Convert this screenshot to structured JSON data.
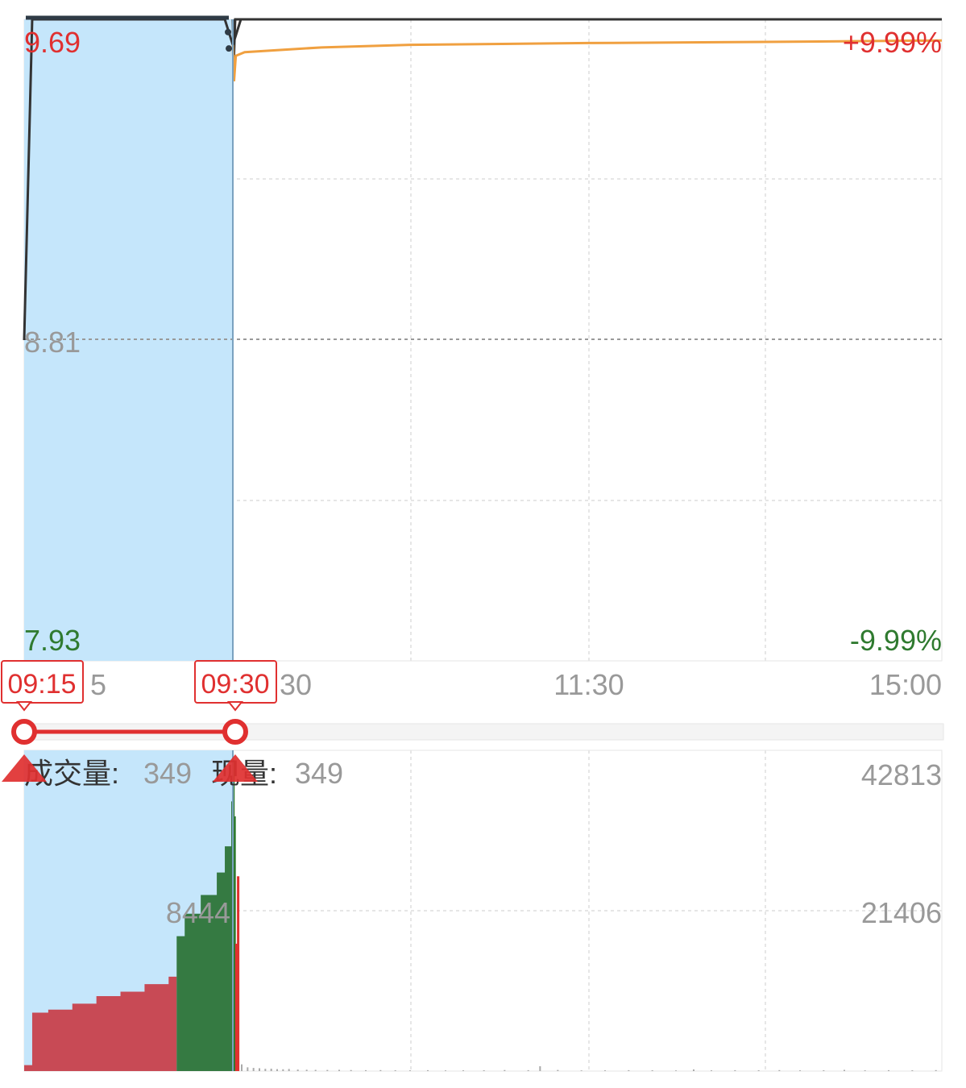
{
  "colors": {
    "up": "#e03030",
    "down": "#2f7a2f",
    "up_bar": "#c84a55",
    "down_bar": "#357a42",
    "price_line": "#333333",
    "avg_line": "#f0a040",
    "auction_fill": "#c5e6fb",
    "gray_text": "#999999",
    "grid": "#e6e6e6",
    "mid_line": "#999999"
  },
  "chart_data": {
    "type": "intraday",
    "price_axis": {
      "top": "9.69",
      "mid": "8.81",
      "bottom": "7.93",
      "top_pct": "+9.99%",
      "bottom_pct": "-9.99%",
      "range": [
        7.93,
        9.69
      ]
    },
    "time_axis": {
      "labels": [
        "09:15",
        "09:30",
        "11:30",
        "15:00"
      ],
      "visible_text": [
        "5",
        "30",
        "11:30",
        "15:00"
      ]
    },
    "auction": {
      "start_label": "09:15",
      "end_label": "09:30",
      "price_points": [
        {
          "t": 0,
          "p": 8.81
        },
        {
          "t": 1,
          "p": 9.69
        },
        {
          "t": 25,
          "p": 9.69
        },
        {
          "t": 26,
          "p": 9.62
        },
        {
          "t": 27,
          "p": 9.69
        }
      ],
      "volume_steps": [
        {
          "t": 0,
          "v": 800
        },
        {
          "t": 1,
          "v": 7800
        },
        {
          "t": 3,
          "v": 8200
        },
        {
          "t": 6,
          "v": 9000
        },
        {
          "t": 9,
          "v": 10000
        },
        {
          "t": 12,
          "v": 10600
        },
        {
          "t": 15,
          "v": 11600
        },
        {
          "t": 18,
          "v": 12600
        },
        {
          "t": 19,
          "v": 18000
        },
        {
          "t": 20,
          "v": 21000
        },
        {
          "t": 22,
          "v": 23500
        },
        {
          "t": 24,
          "v": 26500
        },
        {
          "t": 25,
          "v": 30000
        },
        {
          "t": 25.8,
          "v": 36000
        }
      ],
      "volume_split_t": 19,
      "volume_label": "8444"
    },
    "session": {
      "price_points": [
        {
          "t": 0,
          "p": 9.69
        },
        {
          "t": 240,
          "p": 9.69
        }
      ],
      "avg_points": [
        {
          "t": 0,
          "p": 9.62
        },
        {
          "t": 0.4,
          "p": 9.52
        },
        {
          "t": 1,
          "p": 9.59
        },
        {
          "t": 4,
          "p": 9.6
        },
        {
          "t": 30,
          "p": 9.613
        },
        {
          "t": 60,
          "p": 9.62
        },
        {
          "t": 120,
          "p": 9.625
        },
        {
          "t": 180,
          "p": 9.628
        },
        {
          "t": 240,
          "p": 9.632
        }
      ],
      "open_bars": [
        {
          "t": 0.2,
          "v": 41500,
          "dir": "down"
        },
        {
          "t": 0.6,
          "v": 34000,
          "dir": "down"
        },
        {
          "t": 1.2,
          "v": 17000,
          "dir": "up"
        },
        {
          "t": 1.8,
          "v": 26000,
          "dir": "up"
        }
      ],
      "small_bars": [
        {
          "t": 3,
          "v": 900
        },
        {
          "t": 5,
          "v": 500
        },
        {
          "t": 7,
          "v": 420
        },
        {
          "t": 9,
          "v": 380
        },
        {
          "t": 11,
          "v": 300
        },
        {
          "t": 13,
          "v": 320
        },
        {
          "t": 15,
          "v": 260
        },
        {
          "t": 17,
          "v": 240
        },
        {
          "t": 19,
          "v": 280
        },
        {
          "t": 22,
          "v": 200
        },
        {
          "t": 25,
          "v": 180
        },
        {
          "t": 28,
          "v": 160
        },
        {
          "t": 32,
          "v": 150
        },
        {
          "t": 36,
          "v": 170
        },
        {
          "t": 40,
          "v": 140
        },
        {
          "t": 45,
          "v": 120
        },
        {
          "t": 50,
          "v": 130
        },
        {
          "t": 55,
          "v": 110
        },
        {
          "t": 60,
          "v": 100
        },
        {
          "t": 66,
          "v": 120
        },
        {
          "t": 72,
          "v": 90
        },
        {
          "t": 78,
          "v": 100
        },
        {
          "t": 85,
          "v": 110
        },
        {
          "t": 92,
          "v": 140
        },
        {
          "t": 100,
          "v": 120
        },
        {
          "t": 104,
          "v": 650
        },
        {
          "t": 110,
          "v": 150
        },
        {
          "t": 118,
          "v": 90
        },
        {
          "t": 126,
          "v": 100
        },
        {
          "t": 134,
          "v": 120
        },
        {
          "t": 142,
          "v": 110
        },
        {
          "t": 150,
          "v": 90
        },
        {
          "t": 156,
          "v": 220
        },
        {
          "t": 162,
          "v": 100
        },
        {
          "t": 170,
          "v": 120
        },
        {
          "t": 178,
          "v": 110
        },
        {
          "t": 185,
          "v": 130
        },
        {
          "t": 192,
          "v": 100
        },
        {
          "t": 200,
          "v": 110
        },
        {
          "t": 207,
          "v": 160
        },
        {
          "t": 214,
          "v": 100
        },
        {
          "t": 222,
          "v": 120
        },
        {
          "t": 230,
          "v": 110
        },
        {
          "t": 238,
          "v": 130
        }
      ]
    },
    "volume_axis": {
      "max": "42813",
      "mid": "21406",
      "range": [
        0,
        42813
      ]
    }
  },
  "labels": {
    "volume_title": "成交量:",
    "volume_value": "349",
    "current_title": "现量:",
    "current_value": "349",
    "range_start": "09:15",
    "range_end": "09:30"
  }
}
